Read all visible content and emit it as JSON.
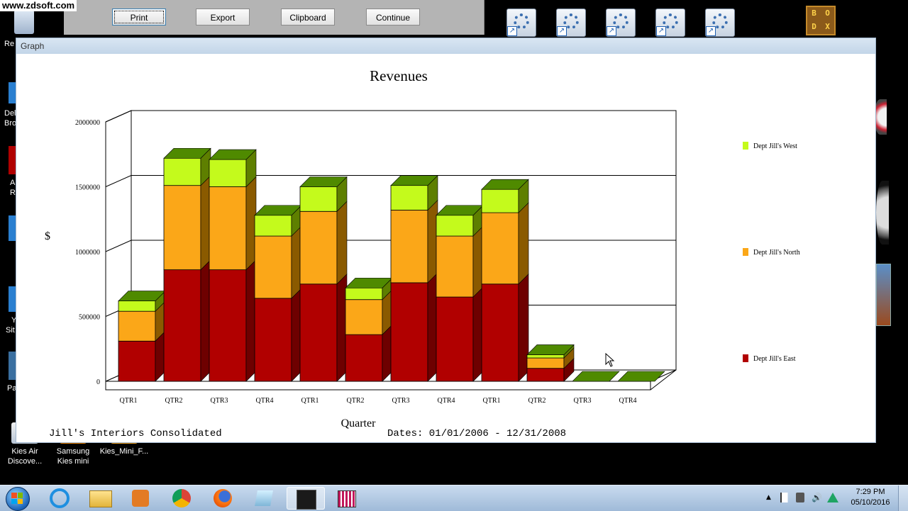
{
  "watermark": "www.zdsoft.com",
  "desktop": {
    "left_fragments": [
      "Re",
      "Del",
      "Bro",
      "A",
      "R",
      "Y",
      "Sit",
      "Pa"
    ],
    "icons": [
      {
        "label_line1": "Kies Air",
        "label_line2": "Discove...",
        "icon": "kies-air-icon"
      },
      {
        "label_line1": "Samsung",
        "label_line2": "Kies mini",
        "icon": "samsung-kies-icon"
      },
      {
        "label_line1": "Kies_Mini_F...",
        "label_line2": "",
        "icon": "kies-mini-folder-icon"
      }
    ],
    "shortcut_icons": [
      "settings-shortcut-icon",
      "settings-shortcut-icon",
      "settings-shortcut-icon",
      "settings-shortcut-icon",
      "settings-shortcut-icon"
    ],
    "dosbox_letters": [
      "B",
      "O",
      "D",
      "X"
    ]
  },
  "toolbar": {
    "print": "Print",
    "export": "Export",
    "clipboard": "Clipboard",
    "continue": "Continue"
  },
  "window": {
    "title": "Graph",
    "company": "Jill's Interiors Consolidated",
    "dates": "Dates: 01/01/2006 - 12/31/2008"
  },
  "chart_data": {
    "type": "bar",
    "stacked": true,
    "title": "Revenues",
    "xlabel": "Quarter",
    "ylabel": "$",
    "ylim": [
      0,
      2000000
    ],
    "yticks": [
      0,
      500000,
      1000000,
      1500000,
      2000000
    ],
    "grid": true,
    "legend_position": "right",
    "categories": [
      "QTR1",
      "QTR2",
      "QTR3",
      "QTR4",
      "QTR1",
      "QTR2",
      "QTR3",
      "QTR4",
      "QTR1",
      "QTR2",
      "QTR3",
      "QTR4"
    ],
    "series": [
      {
        "name": "Dept Jill's East",
        "color": "#b10000",
        "side_color": "#6e0000",
        "values": [
          310000,
          860000,
          860000,
          640000,
          750000,
          360000,
          760000,
          650000,
          750000,
          100000,
          0,
          0
        ]
      },
      {
        "name": "Dept Jill's North",
        "color": "#fba718",
        "side_color": "#8a5a00",
        "values": [
          230000,
          650000,
          640000,
          480000,
          560000,
          270000,
          560000,
          470000,
          550000,
          80000,
          0,
          0
        ]
      },
      {
        "name": "Dept Jill's West",
        "color": "#c4fa1c",
        "side_color": "#5e7f00",
        "values": [
          80000,
          210000,
          210000,
          160000,
          190000,
          90000,
          190000,
          160000,
          180000,
          25000,
          0,
          0
        ]
      }
    ],
    "top_color": "#4f8a00"
  },
  "taskbar": {
    "apps": [
      "start-orb-icon",
      "internet-explorer-icon",
      "file-explorer-icon",
      "media-player-icon",
      "chrome-icon",
      "firefox-icon",
      "notepad-icon",
      "chart-app-icon",
      "task-manager-icon"
    ],
    "time": "7:29 PM",
    "date": "05/10/2016"
  }
}
